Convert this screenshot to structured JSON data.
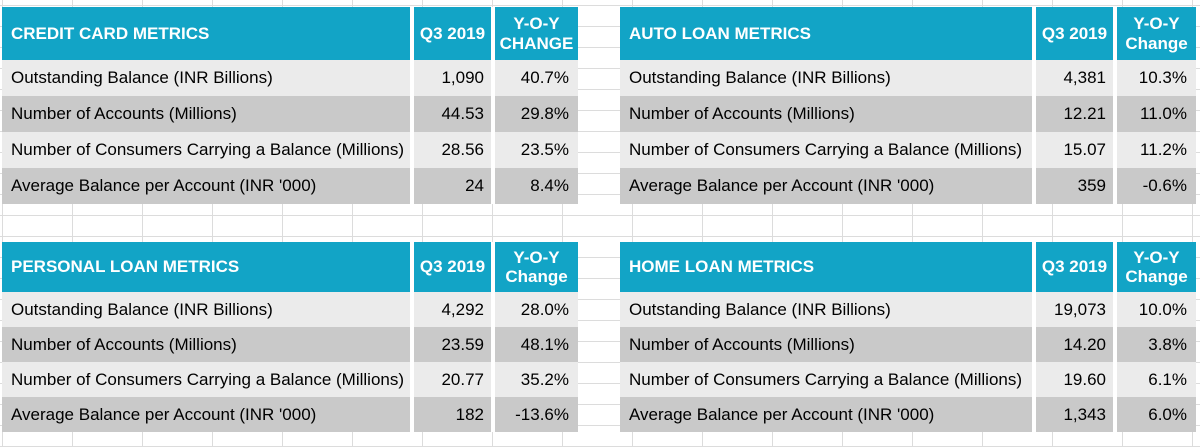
{
  "colors": {
    "header_bg": "#12A4C6",
    "header_text": "#FFFFFF",
    "row_light": "#EBEBEB",
    "row_dark": "#C9C9C9",
    "body_text": "#000000",
    "grid_line": "#DCDCDC",
    "page_bg": "#FFFFFF"
  },
  "tables": [
    {
      "title": "CREDIT CARD METRICS",
      "period_header": "Q3 2019",
      "change_header": [
        "Y-O-Y",
        "CHANGE"
      ],
      "rows": [
        {
          "metric": "Outstanding Balance (INR Billions)",
          "value": "1,090",
          "change": "40.7%"
        },
        {
          "metric": "Number of Accounts (Millions)",
          "value": "44.53",
          "change": "29.8%"
        },
        {
          "metric": "Number of Consumers Carrying a Balance (Millions)",
          "value": "28.56",
          "change": "23.5%"
        },
        {
          "metric": "Average Balance per Account (INR '000)",
          "value": "24",
          "change": "8.4%"
        }
      ]
    },
    {
      "title": "AUTO LOAN METRICS",
      "period_header": "Q3 2019",
      "change_header": [
        "Y-O-Y",
        "Change"
      ],
      "rows": [
        {
          "metric": "Outstanding Balance (INR Billions)",
          "value": "4,381",
          "change": "10.3%"
        },
        {
          "metric": "Number of Accounts (Millions)",
          "value": "12.21",
          "change": "11.0%"
        },
        {
          "metric": "Number of Consumers Carrying a Balance (Millions)",
          "value": "15.07",
          "change": "11.2%"
        },
        {
          "metric": "Average Balance per Account (INR '000)",
          "value": "359",
          "change": "-0.6%"
        }
      ]
    },
    {
      "title": "PERSONAL LOAN METRICS",
      "period_header": "Q3 2019",
      "change_header": [
        "Y-O-Y",
        "Change"
      ],
      "rows": [
        {
          "metric": "Outstanding Balance (INR Billions)",
          "value": "4,292",
          "change": "28.0%"
        },
        {
          "metric": "Number of Accounts (Millions)",
          "value": "23.59",
          "change": "48.1%"
        },
        {
          "metric": "Number of Consumers Carrying a Balance (Millions)",
          "value": "20.77",
          "change": "35.2%"
        },
        {
          "metric": "Average Balance per Account (INR '000)",
          "value": "182",
          "change": "-13.6%"
        }
      ]
    },
    {
      "title": "HOME LOAN METRICS",
      "period_header": "Q3 2019",
      "change_header": [
        "Y-O-Y",
        "Change"
      ],
      "rows": [
        {
          "metric": "Outstanding Balance (INR Billions)",
          "value": "19,073",
          "change": "10.0%"
        },
        {
          "metric": "Number of Accounts (Millions)",
          "value": "14.20",
          "change": "3.8%"
        },
        {
          "metric": "Number of Consumers Carrying a Balance (Millions)",
          "value": "19.60",
          "change": "6.1%"
        },
        {
          "metric": "Average Balance per Account (INR '000)",
          "value": "1,343",
          "change": "6.0%"
        }
      ]
    }
  ]
}
